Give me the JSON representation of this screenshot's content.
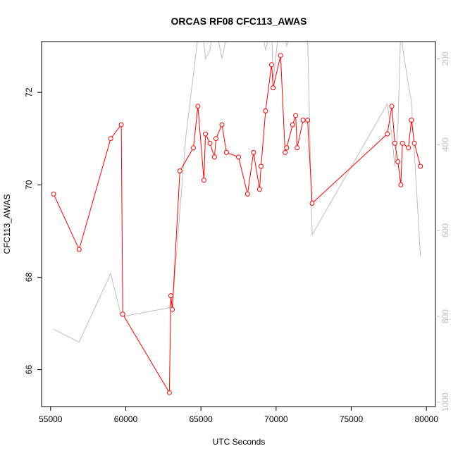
{
  "chart_data": {
    "type": "line",
    "title": "ORCAS RF08 CFC113_AWAS",
    "xlabel": "UTC Seconds",
    "ylabel": "CFC113_AWAS",
    "xlim": [
      54400,
      80600
    ],
    "ylim": [
      65.2,
      73.1
    ],
    "x_ticks": [
      55000,
      60000,
      65000,
      70000,
      75000,
      80000
    ],
    "x_tick_labels": [
      "55000",
      "60000",
      "65000",
      "70000",
      "75000",
      "80000"
    ],
    "y_ticks": [
      66,
      68,
      70,
      72
    ],
    "y_tick_labels": [
      "66",
      "68",
      "70",
      "72"
    ],
    "y2_lim": [
      1010,
      160
    ],
    "y2_ticks": [
      200,
      400,
      600,
      800,
      1000
    ],
    "y2_tick_labels": [
      "200",
      "400",
      "600",
      "800",
      "1000"
    ],
    "colors": {
      "primary": "#ff0000",
      "secondary": "#bebebe"
    },
    "grid": false,
    "series": [
      {
        "axis": "left",
        "style": "line+points",
        "color": "#ff0000",
        "x": [
          55200,
          56900,
          59000,
          59700,
          59800,
          62900,
          63000,
          63100,
          63600,
          64500,
          64800,
          65200,
          65300,
          65600,
          65900,
          66000,
          66400,
          66700,
          67500,
          68100,
          68500,
          68900,
          69000,
          69300,
          69700,
          69800,
          70300,
          70600,
          70700,
          71100,
          71300,
          71400,
          71800,
          72100,
          72400,
          77400,
          77700,
          77900,
          78100,
          78300,
          78400,
          78800,
          79000,
          79200,
          79600
        ],
        "y": [
          69.8,
          68.6,
          71.0,
          71.3,
          67.2,
          65.5,
          67.6,
          67.3,
          70.3,
          70.8,
          71.7,
          70.1,
          71.1,
          70.9,
          70.6,
          71.0,
          71.3,
          70.7,
          70.6,
          69.8,
          70.7,
          69.9,
          70.4,
          71.6,
          72.6,
          72.1,
          72.8,
          70.7,
          70.8,
          71.3,
          71.5,
          70.8,
          71.4,
          71.4,
          69.6,
          71.1,
          71.7,
          70.9,
          70.5,
          70.0,
          70.9,
          70.8,
          71.4,
          70.9,
          70.4
        ]
      },
      {
        "axis": "right",
        "style": "line",
        "color": "#bebebe",
        "x": [
          55200,
          56900,
          59000,
          59700,
          59800,
          62900,
          63000,
          63100,
          64000,
          64800,
          65000,
          65300,
          65600,
          65900,
          66400,
          66700,
          67500,
          68100,
          68500,
          69000,
          69300,
          69700,
          69800,
          70300,
          70600,
          70700,
          71100,
          71300,
          71400,
          71800,
          72100,
          72400,
          77400,
          77700,
          77900,
          78100,
          78300,
          78400,
          78800,
          79000,
          79200,
          79600
        ],
        "y": [
          830,
          860,
          700,
          800,
          800,
          780,
          760,
          775,
          380,
          150,
          100,
          200,
          180,
          110,
          200,
          150,
          130,
          140,
          100,
          120,
          180,
          120,
          250,
          100,
          150,
          170,
          130,
          100,
          110,
          130,
          150,
          610,
          305,
          380,
          450,
          360,
          120,
          170,
          260,
          300,
          420,
          660
        ]
      }
    ]
  }
}
